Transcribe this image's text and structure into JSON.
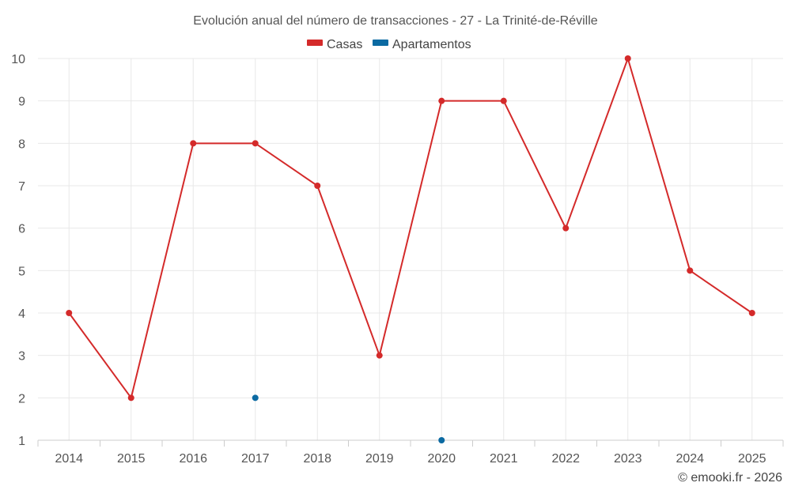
{
  "chart_data": {
    "type": "line",
    "title": "Evolución anual del número de transacciones - 27 - La Trinité-de-Réville",
    "categories": [
      "2014",
      "2015",
      "2016",
      "2017",
      "2018",
      "2019",
      "2020",
      "2021",
      "2022",
      "2023",
      "2024",
      "2025"
    ],
    "series": [
      {
        "name": "Casas",
        "color": "#d42a2a",
        "values": [
          4,
          2,
          8,
          8,
          7,
          3,
          9,
          9,
          6,
          10,
          5,
          4
        ]
      },
      {
        "name": "Apartamentos",
        "color": "#0b6aa2",
        "values": [
          null,
          null,
          null,
          2,
          null,
          null,
          1,
          null,
          null,
          null,
          null,
          null
        ]
      }
    ],
    "yticks": [
      "1",
      "2",
      "3",
      "4",
      "5",
      "6",
      "7",
      "8",
      "9",
      "10"
    ],
    "ylim": [
      1,
      10
    ],
    "xlabel": "",
    "ylabel": "",
    "grid": true,
    "legend_position": "top-center"
  },
  "credit": "© emooki.fr - 2026"
}
